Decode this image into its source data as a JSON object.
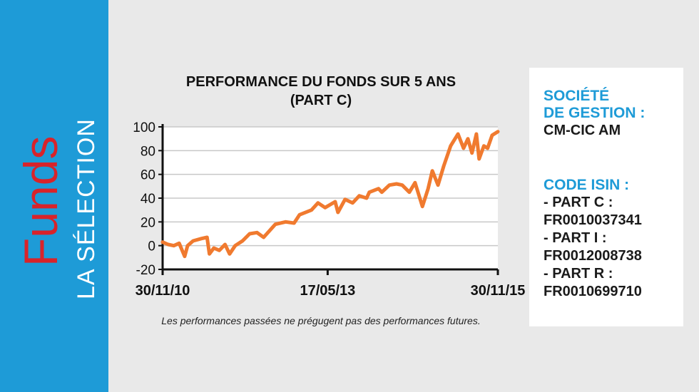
{
  "sidebar": {
    "brand": "Funds",
    "tagline": "LA SÉLECTION"
  },
  "chart_data": {
    "type": "line",
    "title": "PERFORMANCE DU FONDS SUR 5 ANS",
    "subtitle": "(PART C)",
    "note": "Les performances passées ne prégugent pas des performances futures.",
    "x": [
      "30/11/10",
      "30/12/10",
      "30/01/11",
      "28/02/11",
      "30/03/11",
      "15/04/11",
      "15/05/11",
      "30/06/11",
      "30/07/11",
      "12/08/11",
      "05/09/11",
      "05/10/11",
      "05/11/11",
      "30/11/11",
      "30/12/11",
      "08/02/12",
      "18/03/12",
      "27/04/12",
      "02/06/12",
      "05/08/12",
      "30/09/12",
      "15/11/12",
      "15/12/12",
      "18/02/13",
      "25/03/13",
      "03/05/13",
      "27/06/13",
      "12/07/13",
      "20/08/13",
      "30/09/13",
      "05/11/13",
      "15/12/13",
      "30/12/13",
      "18/02/14",
      "08/03/14",
      "18/04/14",
      "27/05/14",
      "27/06/14",
      "05/08/14",
      "05/09/14",
      "15/10/14",
      "15/11/14",
      "08/12/14",
      "08/01/15",
      "08/02/15",
      "18/03/15",
      "27/04/15",
      "27/05/15",
      "20/06/15",
      "12/07/15",
      "05/08/15",
      "20/08/15",
      "15/09/15",
      "05/10/15",
      "30/10/15",
      "30/11/15"
    ],
    "values": [
      3,
      1,
      0,
      2,
      -9,
      0,
      4,
      6,
      7,
      -7,
      -2,
      -4,
      1,
      -7,
      0,
      4,
      10,
      11,
      7,
      18,
      20,
      19,
      26,
      30,
      36,
      32,
      37,
      28,
      39,
      36,
      42,
      40,
      45,
      48,
      45,
      51,
      52,
      51,
      45,
      53,
      33,
      48,
      63,
      51,
      67,
      84,
      94,
      82,
      90,
      78,
      94,
      73,
      84,
      82,
      93,
      96
    ],
    "color": "#f07a2f",
    "xlim": [
      "30/11/10",
      "30/11/15"
    ],
    "xticks": [
      "30/11/10",
      "17/05/13",
      "30/11/15"
    ],
    "ylim": [
      -20,
      100
    ],
    "yticks": [
      -20,
      0,
      20,
      40,
      60,
      80,
      100
    ],
    "grid": true
  },
  "info": {
    "management_heading": [
      "SOCIÉTÉ",
      "DE GESTION :"
    ],
    "management": "CM-CIC AM",
    "isin_heading": "CODE ISIN :",
    "isin_lines": [
      "- PART C :",
      "FR0010037341",
      "- PART I :",
      "FR0012008738",
      "- PART R :",
      "FR0010699710"
    ]
  }
}
